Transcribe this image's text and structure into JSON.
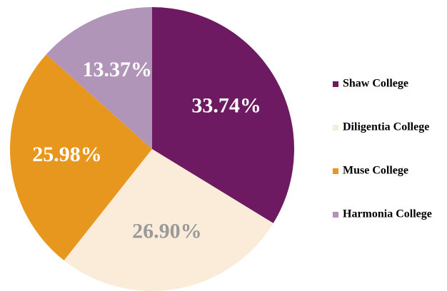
{
  "chart_data": {
    "type": "pie",
    "categories": [
      "Shaw College",
      "Diligentia College",
      "Muse College",
      "Harmonia College"
    ],
    "values": [
      33.74,
      26.9,
      25.98,
      13.37
    ],
    "value_labels": [
      "33.74%",
      "26.90%",
      "25.98%",
      "13.37%"
    ],
    "colors": [
      "#6d1a63",
      "#fbebd9",
      "#e8971e",
      "#b095b8"
    ],
    "label_colors": [
      "#ffffff",
      "#9a9a9a",
      "#ffffff",
      "#ffffff"
    ],
    "legend": "right"
  }
}
